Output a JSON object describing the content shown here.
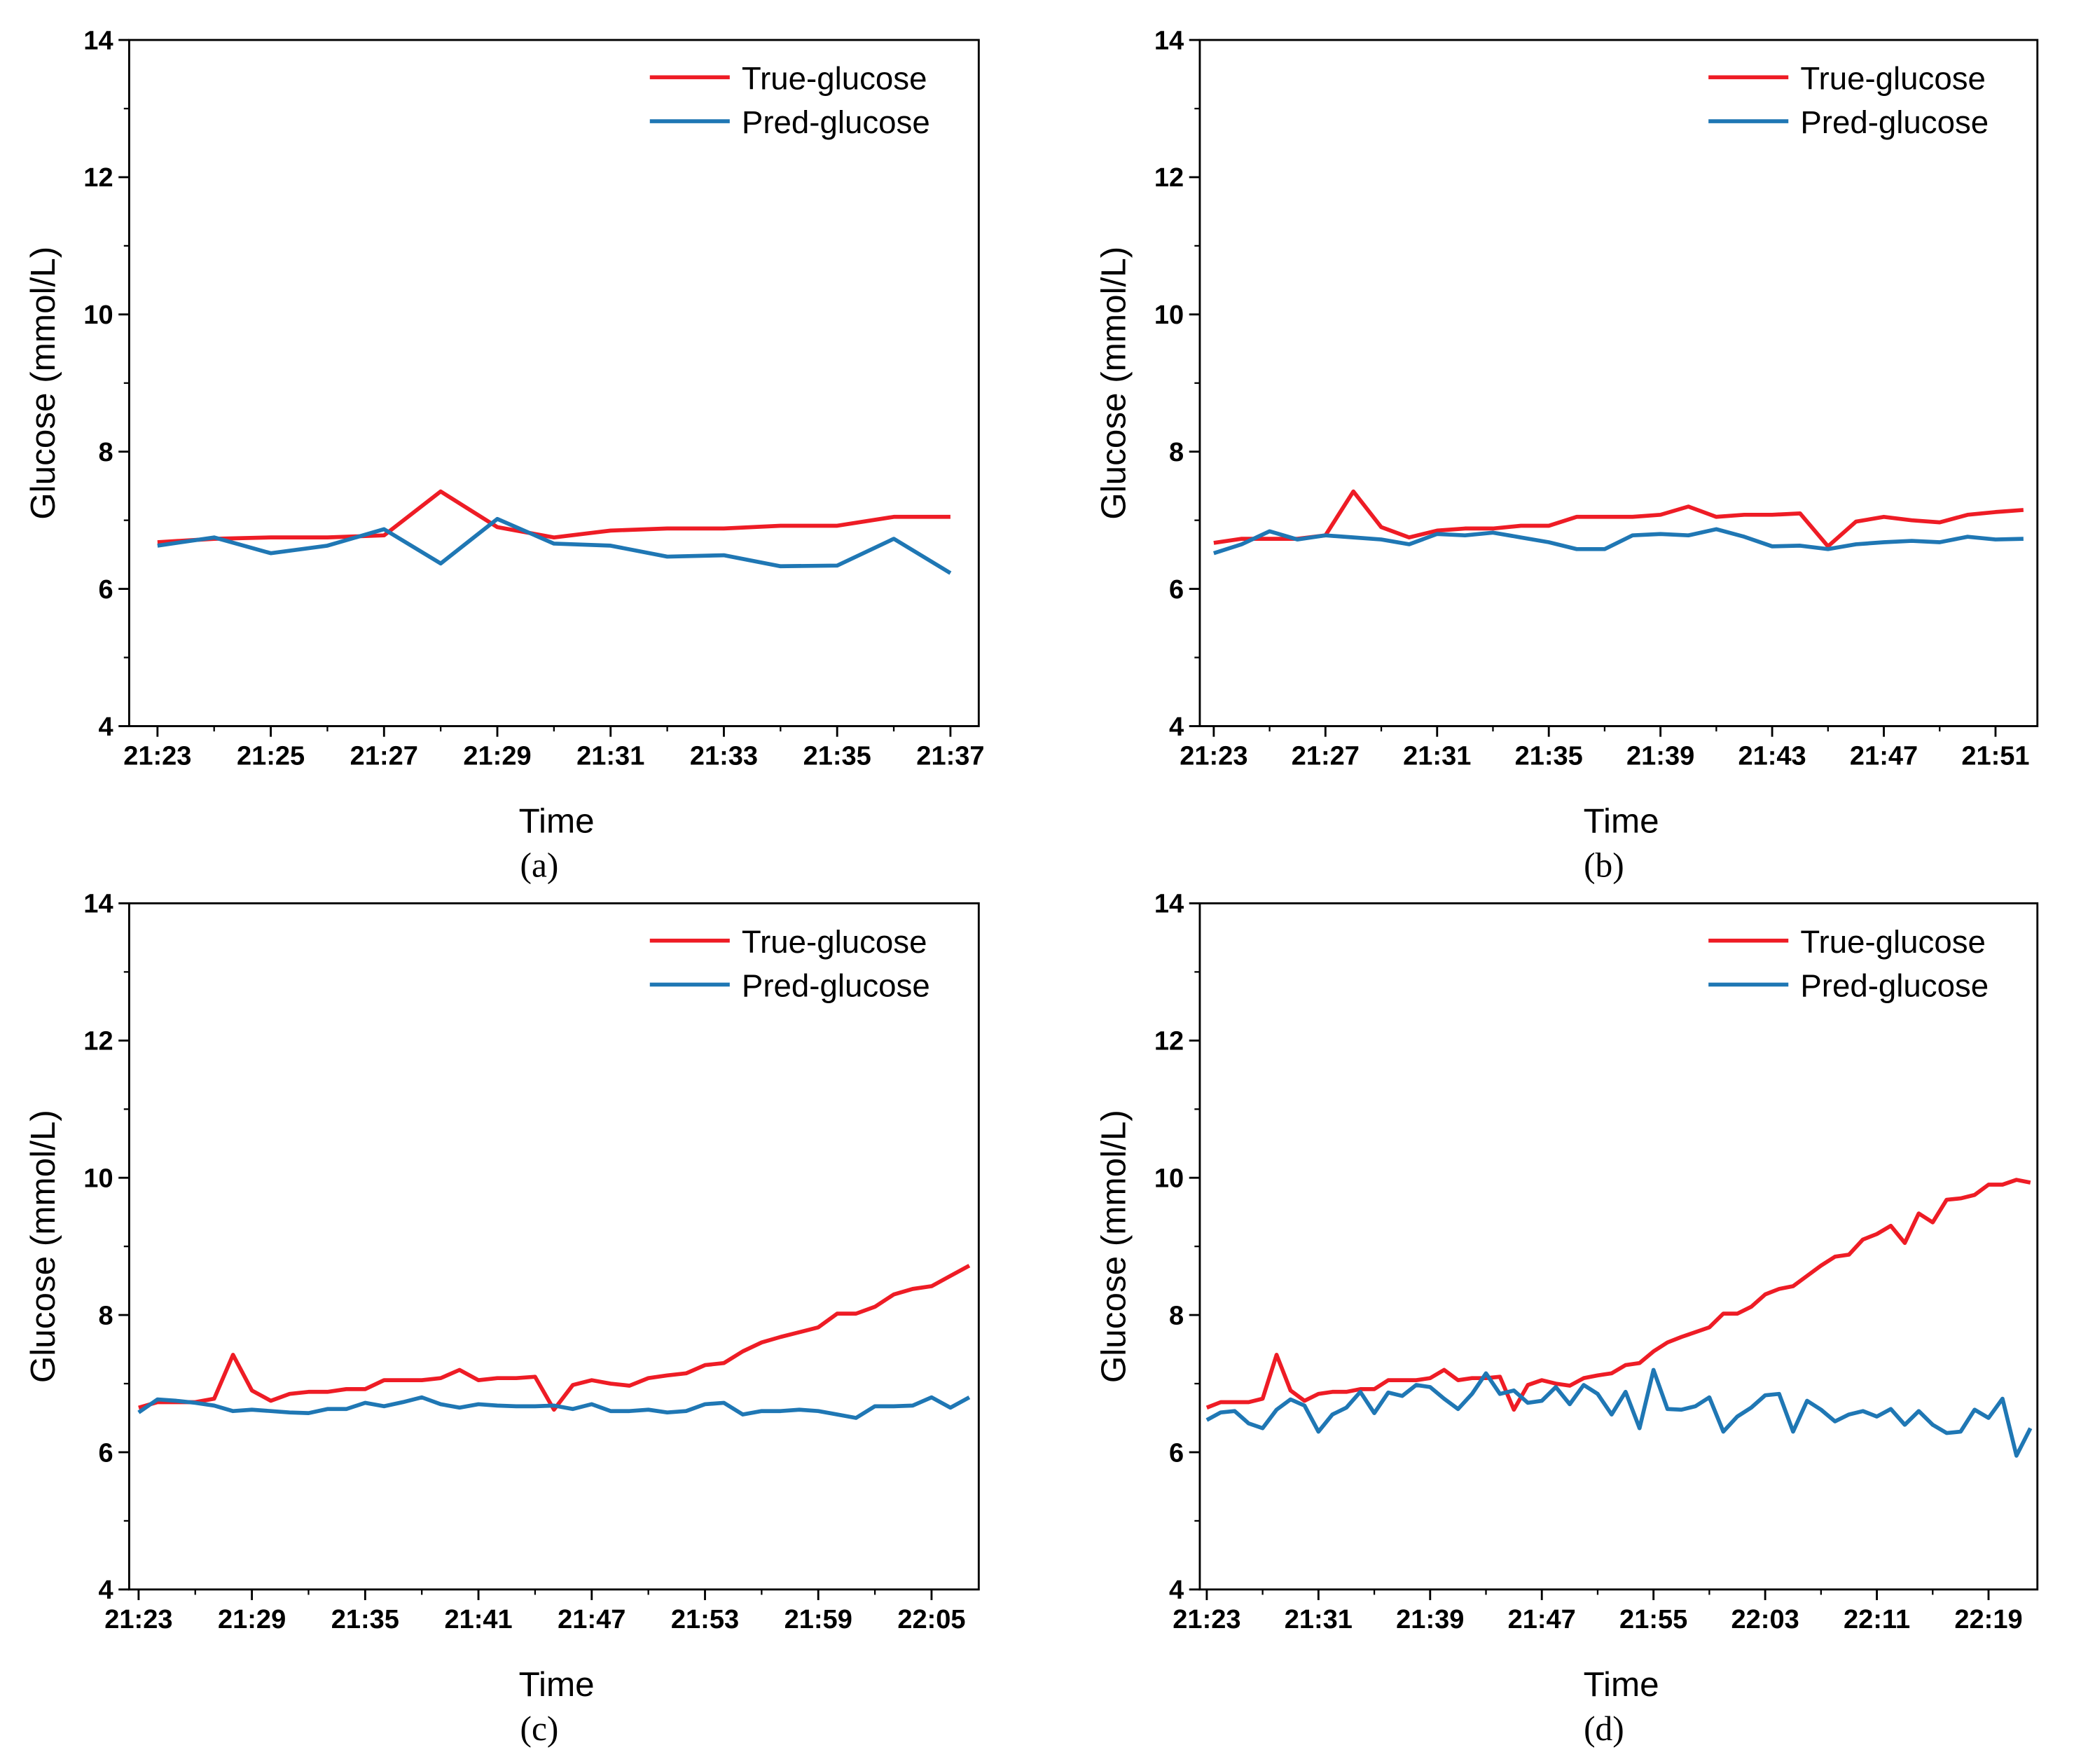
{
  "chart_data": [
    {
      "type": "line",
      "caption": "(a)",
      "xlabel": "Time",
      "ylabel": "Glucose (mmol/L)",
      "legend": "upper right",
      "xlim": [
        "21:22:30",
        "21:37:30"
      ],
      "xticks": [
        "21:23",
        "21:25",
        "21:27",
        "21:29",
        "21:31",
        "21:33",
        "21:35",
        "21:37"
      ],
      "ylim": [
        4,
        14
      ],
      "yticks": [
        4,
        6,
        8,
        10,
        12,
        14
      ],
      "x": [
        "21:23",
        "21:24",
        "21:25",
        "21:26",
        "21:27",
        "21:28",
        "21:29",
        "21:30",
        "21:31",
        "21:32",
        "21:33",
        "21:34",
        "21:35",
        "21:36",
        "21:37"
      ],
      "series": [
        {
          "name": "True-glucose",
          "color": "#ee1c25",
          "values": [
            6.68,
            6.73,
            6.75,
            6.75,
            6.78,
            7.42,
            6.9,
            6.75,
            6.85,
            6.88,
            6.88,
            6.92,
            6.92,
            7.05,
            7.05
          ]
        },
        {
          "name": "Pred-glucose",
          "color": "#1f77b4",
          "values": [
            6.63,
            6.75,
            6.52,
            6.63,
            6.87,
            6.37,
            7.02,
            6.66,
            6.63,
            6.47,
            6.49,
            6.33,
            6.34,
            6.73,
            6.23
          ]
        }
      ]
    },
    {
      "type": "line",
      "caption": "(b)",
      "xlabel": "Time",
      "ylabel": "Glucose (mmol/L)",
      "legend": "upper right",
      "xlim": [
        "21:22:30",
        "21:52:30"
      ],
      "xticks": [
        "21:23",
        "21:27",
        "21:31",
        "21:35",
        "21:39",
        "21:43",
        "21:47",
        "21:51"
      ],
      "ylim": [
        4,
        14
      ],
      "yticks": [
        4,
        6,
        8,
        10,
        12,
        14
      ],
      "x": [
        "21:23",
        "21:24",
        "21:25",
        "21:26",
        "21:27",
        "21:28",
        "21:29",
        "21:30",
        "21:31",
        "21:32",
        "21:33",
        "21:34",
        "21:35",
        "21:36",
        "21:37",
        "21:38",
        "21:39",
        "21:40",
        "21:41",
        "21:42",
        "21:43",
        "21:44",
        "21:45",
        "21:46",
        "21:47",
        "21:48",
        "21:49",
        "21:50",
        "21:51",
        "21:52"
      ],
      "series": [
        {
          "name": "True-glucose",
          "color": "#ee1c25",
          "values": [
            6.67,
            6.73,
            6.73,
            6.73,
            6.78,
            7.42,
            6.9,
            6.75,
            6.85,
            6.88,
            6.88,
            6.92,
            6.92,
            7.05,
            7.05,
            7.05,
            7.08,
            7.2,
            7.05,
            7.08,
            7.08,
            7.1,
            6.62,
            6.98,
            7.05,
            7.0,
            6.97,
            7.08,
            7.12,
            7.15
          ]
        },
        {
          "name": "Pred-glucose",
          "color": "#1f77b4",
          "values": [
            6.52,
            6.65,
            6.84,
            6.72,
            6.78,
            6.75,
            6.72,
            6.65,
            6.8,
            6.78,
            6.82,
            6.75,
            6.68,
            6.58,
            6.58,
            6.78,
            6.8,
            6.78,
            6.87,
            6.76,
            6.62,
            6.63,
            6.58,
            6.65,
            6.68,
            6.7,
            6.68,
            6.76,
            6.72,
            6.73
          ]
        }
      ]
    },
    {
      "type": "line",
      "caption": "(c)",
      "xlabel": "Time",
      "ylabel": "Glucose (mmol/L)",
      "legend": "upper right",
      "xlim": [
        "21:22:30",
        "22:07:30"
      ],
      "xticks": [
        "21:23",
        "21:29",
        "21:35",
        "21:41",
        "21:47",
        "21:53",
        "21:59",
        "22:05"
      ],
      "ylim": [
        4,
        14
      ],
      "yticks": [
        4,
        6,
        8,
        10,
        12,
        14
      ],
      "x": [
        "21:23",
        "21:24",
        "21:25",
        "21:26",
        "21:27",
        "21:28",
        "21:29",
        "21:30",
        "21:31",
        "21:32",
        "21:33",
        "21:34",
        "21:35",
        "21:36",
        "21:37",
        "21:38",
        "21:39",
        "21:40",
        "21:41",
        "21:42",
        "21:43",
        "21:44",
        "21:45",
        "21:46",
        "21:47",
        "21:48",
        "21:49",
        "21:50",
        "21:51",
        "21:52",
        "21:53",
        "21:54",
        "21:55",
        "21:56",
        "21:57",
        "21:58",
        "21:59",
        "22:00",
        "22:01",
        "22:02",
        "22:03",
        "22:04",
        "22:05",
        "22:06",
        "22:07"
      ],
      "series": [
        {
          "name": "True-glucose",
          "color": "#ee1c25",
          "values": [
            6.65,
            6.73,
            6.73,
            6.73,
            6.78,
            7.42,
            6.9,
            6.75,
            6.85,
            6.88,
            6.88,
            6.92,
            6.92,
            7.05,
            7.05,
            7.05,
            7.08,
            7.2,
            7.05,
            7.08,
            7.08,
            7.1,
            6.62,
            6.98,
            7.05,
            7.0,
            6.97,
            7.08,
            7.12,
            7.15,
            7.27,
            7.3,
            7.47,
            7.6,
            7.68,
            7.75,
            7.82,
            8.02,
            8.02,
            8.12,
            8.3,
            8.38,
            8.42,
            8.57,
            8.72
          ]
        },
        {
          "name": "Pred-glucose",
          "color": "#1f77b4",
          "values": [
            6.58,
            6.77,
            6.75,
            6.72,
            6.68,
            6.6,
            6.62,
            6.6,
            6.58,
            6.57,
            6.63,
            6.63,
            6.72,
            6.67,
            6.73,
            6.8,
            6.7,
            6.65,
            6.7,
            6.68,
            6.67,
            6.67,
            6.68,
            6.63,
            6.7,
            6.6,
            6.6,
            6.62,
            6.58,
            6.6,
            6.7,
            6.72,
            6.55,
            6.6,
            6.6,
            6.62,
            6.6,
            6.55,
            6.5,
            6.67,
            6.67,
            6.68,
            6.8,
            6.65,
            6.8
          ]
        }
      ]
    },
    {
      "type": "line",
      "caption": "(d)",
      "xlabel": "Time",
      "ylabel": "Glucose (mmol/L)",
      "legend": "upper right",
      "xlim": [
        "21:22:30",
        "22:22:30"
      ],
      "xticks": [
        "21:23",
        "21:31",
        "21:39",
        "21:47",
        "21:55",
        "22:03",
        "22:11",
        "22:19"
      ],
      "ylim": [
        4,
        14
      ],
      "yticks": [
        4,
        6,
        8,
        10,
        12,
        14
      ],
      "x": [
        "21:23",
        "21:24",
        "21:25",
        "21:26",
        "21:27",
        "21:28",
        "21:29",
        "21:30",
        "21:31",
        "21:32",
        "21:33",
        "21:34",
        "21:35",
        "21:36",
        "21:37",
        "21:38",
        "21:39",
        "21:40",
        "21:41",
        "21:42",
        "21:43",
        "21:44",
        "21:45",
        "21:46",
        "21:47",
        "21:48",
        "21:49",
        "21:50",
        "21:51",
        "21:52",
        "21:53",
        "21:54",
        "21:55",
        "21:56",
        "21:57",
        "21:58",
        "21:59",
        "22:00",
        "22:01",
        "22:02",
        "22:03",
        "22:04",
        "22:05",
        "22:06",
        "22:07",
        "22:08",
        "22:09",
        "22:10",
        "22:11",
        "22:12",
        "22:13",
        "22:14",
        "22:15",
        "22:16",
        "22:17",
        "22:18",
        "22:19",
        "22:20",
        "22:21",
        "22:22"
      ],
      "series": [
        {
          "name": "True-glucose",
          "color": "#ee1c25",
          "values": [
            6.65,
            6.73,
            6.73,
            6.73,
            6.78,
            7.42,
            6.9,
            6.75,
            6.85,
            6.88,
            6.88,
            6.92,
            6.92,
            7.05,
            7.05,
            7.05,
            7.08,
            7.2,
            7.05,
            7.08,
            7.08,
            7.1,
            6.62,
            6.98,
            7.05,
            7.0,
            6.97,
            7.08,
            7.12,
            7.15,
            7.27,
            7.3,
            7.47,
            7.6,
            7.68,
            7.75,
            7.82,
            8.02,
            8.02,
            8.12,
            8.3,
            8.38,
            8.42,
            8.57,
            8.72,
            8.85,
            8.88,
            9.1,
            9.18,
            9.3,
            9.05,
            9.48,
            9.35,
            9.68,
            9.7,
            9.75,
            9.9,
            9.9,
            9.97,
            9.93
          ]
        },
        {
          "name": "Pred-glucose",
          "color": "#1f77b4",
          "values": [
            6.47,
            6.58,
            6.6,
            6.42,
            6.35,
            6.62,
            6.77,
            6.68,
            6.3,
            6.55,
            6.65,
            6.88,
            6.57,
            6.87,
            6.82,
            6.98,
            6.95,
            6.78,
            6.63,
            6.85,
            7.15,
            6.85,
            6.9,
            6.72,
            6.75,
            6.95,
            6.7,
            6.98,
            6.85,
            6.55,
            6.88,
            6.35,
            7.2,
            6.63,
            6.62,
            6.67,
            6.8,
            6.3,
            6.52,
            6.65,
            6.83,
            6.85,
            6.3,
            6.75,
            6.62,
            6.45,
            6.55,
            6.6,
            6.52,
            6.63,
            6.4,
            6.6,
            6.4,
            6.28,
            6.3,
            6.62,
            6.5,
            6.78,
            5.95,
            6.35
          ]
        }
      ]
    }
  ]
}
